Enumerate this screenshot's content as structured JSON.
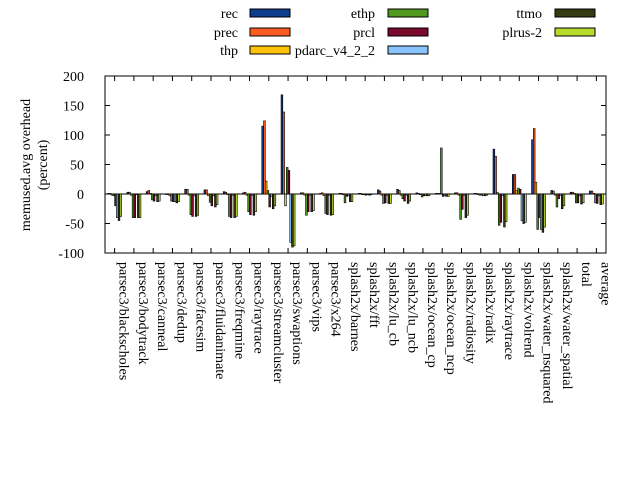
{
  "chart_data": {
    "type": "bar",
    "title": "",
    "xlabel": "",
    "ylabel_lines": [
      "memused.avg overhead",
      "(percent)"
    ],
    "ylim": [
      -100,
      200
    ],
    "yticks": [
      -100,
      -50,
      0,
      50,
      100,
      150,
      200
    ],
    "grid": false,
    "legend_position": "top",
    "categories": [
      "parsec3/blackscholes",
      "parsec3/bodytrack",
      "parsec3/canneal",
      "parsec3/dedup",
      "parsec3/facesim",
      "parsec3/fluidanimate",
      "parsec3/freqmine",
      "parsec3/raytrace",
      "parsec3/streamcluster",
      "parsec3/swaptions",
      "parsec3/vips",
      "parsec3/x264",
      "splash2x/barnes",
      "splash2x/fft",
      "splash2x/lu_cb",
      "splash2x/lu_ncb",
      "splash2x/ocean_cp",
      "splash2x/ocean_ncp",
      "splash2x/radiosity",
      "splash2x/radix",
      "splash2x/raytrace",
      "splash2x/volrend",
      "splash2x/water_nsquared",
      "splash2x/water_spatial",
      "total",
      "average"
    ],
    "series": [
      {
        "name": "rec",
        "color": "#0d3d8c",
        "values": [
          1,
          3,
          4,
          0,
          8,
          7,
          4,
          2,
          115,
          168,
          2,
          1,
          1,
          1,
          7,
          8,
          2,
          1,
          2,
          1,
          76,
          33,
          92,
          6,
          3,
          5
        ]
      },
      {
        "name": "prec",
        "color": "#ff5a1f",
        "values": [
          1,
          3,
          6,
          0,
          8,
          7,
          3,
          3,
          124,
          139,
          2,
          2,
          1,
          1,
          5,
          6,
          1,
          1,
          2,
          1,
          64,
          33,
          111,
          5,
          3,
          5
        ]
      },
      {
        "name": "thp",
        "color": "#ffc20a",
        "values": [
          -2,
          -2,
          1,
          -3,
          -2,
          -3,
          -1,
          -2,
          22,
          -20,
          -2,
          -3,
          0,
          0,
          -2,
          -2,
          0,
          1,
          -2,
          0,
          3,
          6,
          20,
          -2,
          1,
          1
        ]
      },
      {
        "name": "ethp",
        "color": "#4f9a1e",
        "values": [
          -3,
          -40,
          -10,
          -12,
          -35,
          -14,
          -38,
          -30,
          6,
          45,
          -36,
          -33,
          -15,
          -1,
          -16,
          -8,
          -5,
          78,
          -43,
          -2,
          -53,
          10,
          -60,
          -22,
          -15,
          -15
        ]
      },
      {
        "name": "prcl",
        "color": "#7a0a2b",
        "values": [
          -20,
          -40,
          -12,
          -13,
          -38,
          -20,
          -40,
          -35,
          -22,
          40,
          -30,
          -35,
          -4,
          -2,
          -15,
          -12,
          -3,
          -4,
          -26,
          -2,
          -48,
          8,
          -40,
          -8,
          -15,
          -16
        ]
      },
      {
        "name": "pdarc_v4_2_2",
        "color": "#8ac4ff",
        "values": [
          -40,
          -1,
          -3,
          -13,
          -3,
          -3,
          -2,
          -2,
          -4,
          -82,
          -2,
          -2,
          -3,
          -1,
          -2,
          -2,
          -3,
          -3,
          -2,
          -3,
          -3,
          -45,
          -60,
          -3,
          -3,
          -3
        ]
      },
      {
        "name": "ttmo",
        "color": "#353a10",
        "values": [
          -45,
          -40,
          -13,
          -15,
          -38,
          -22,
          -40,
          -36,
          -25,
          -90,
          -30,
          -36,
          -13,
          -2,
          -16,
          -16,
          -3,
          -4,
          -40,
          -3,
          -56,
          -50,
          -65,
          -25,
          -17,
          -18
        ]
      },
      {
        "name": "plrus-2",
        "color": "#b8d92a",
        "values": [
          -38,
          -40,
          -12,
          -13,
          -36,
          -18,
          -38,
          -30,
          -20,
          -88,
          -28,
          -35,
          -13,
          -1,
          -16,
          -12,
          -3,
          -4,
          -36,
          -2,
          -47,
          -48,
          -56,
          -20,
          -15,
          -17
        ]
      }
    ]
  }
}
